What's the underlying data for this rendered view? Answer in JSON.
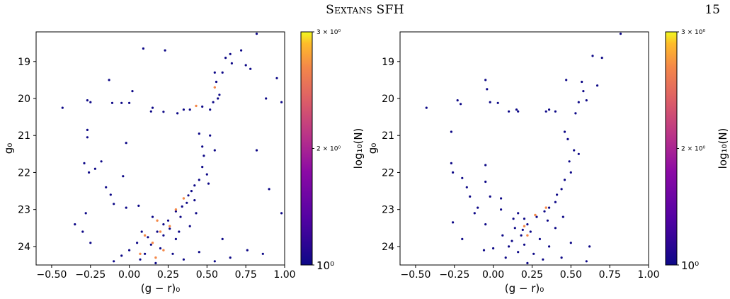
{
  "header": {
    "title": "Sextans SFH",
    "page_number": "15"
  },
  "chart_data": [
    {
      "type": "scatter",
      "title": "",
      "xlabel": "(g − r)₀",
      "ylabel": "g₀",
      "xlim": [
        -0.6,
        1.0
      ],
      "ylim": [
        24.5,
        18.2
      ],
      "y_inverted": true,
      "xticks": [
        "−0.50",
        "−0.25",
        "0.00",
        "0.25",
        "0.50",
        "0.75",
        "1.00"
      ],
      "yticks": [
        "19",
        "20",
        "21",
        "22",
        "23",
        "24"
      ],
      "colorbar": {
        "label": "log₁₀(N)",
        "ticks": [
          "3 × 10⁰",
          "2 × 10⁰",
          "10⁰"
        ],
        "range": [
          1,
          3
        ],
        "colormap": "plasma"
      },
      "points": [
        {
          "x": -0.27,
          "y": 20.05
        },
        {
          "x": -0.25,
          "y": 20.1
        },
        {
          "x": -0.11,
          "y": 20.12
        },
        {
          "x": -0.05,
          "y": 20.12
        },
        {
          "x": 0.0,
          "y": 20.12
        },
        {
          "x": 0.02,
          "y": 19.8
        },
        {
          "x": -0.13,
          "y": 19.5
        },
        {
          "x": 0.14,
          "y": 20.35
        },
        {
          "x": 0.15,
          "y": 20.25
        },
        {
          "x": 0.22,
          "y": 20.36
        },
        {
          "x": 0.31,
          "y": 20.4
        },
        {
          "x": 0.35,
          "y": 20.3
        },
        {
          "x": 0.39,
          "y": 20.3
        },
        {
          "x": 0.47,
          "y": 20.22
        },
        {
          "x": 0.52,
          "y": 20.3
        },
        {
          "x": 0.54,
          "y": 20.1
        },
        {
          "x": 0.57,
          "y": 20.0
        },
        {
          "x": 0.58,
          "y": 19.9
        },
        {
          "x": 0.56,
          "y": 19.55
        },
        {
          "x": 0.55,
          "y": 19.3
        },
        {
          "x": 0.6,
          "y": 19.3
        },
        {
          "x": 0.62,
          "y": 18.9
        },
        {
          "x": 0.65,
          "y": 18.8
        },
        {
          "x": 0.72,
          "y": 18.7
        },
        {
          "x": 0.66,
          "y": 19.05
        },
        {
          "x": 0.09,
          "y": 18.65
        },
        {
          "x": 0.23,
          "y": 18.7
        },
        {
          "x": 0.82,
          "y": 18.25
        },
        {
          "x": 0.95,
          "y": 19.45
        },
        {
          "x": 0.98,
          "y": 20.1
        },
        {
          "x": 0.75,
          "y": 19.1
        },
        {
          "x": 0.78,
          "y": 19.2
        },
        {
          "x": 0.88,
          "y": 20.0
        },
        {
          "x": -0.43,
          "y": 20.25
        },
        {
          "x": -0.27,
          "y": 20.85
        },
        {
          "x": -0.27,
          "y": 21.05
        },
        {
          "x": -0.29,
          "y": 21.75
        },
        {
          "x": -0.26,
          "y": 22.0
        },
        {
          "x": -0.22,
          "y": 21.9
        },
        {
          "x": -0.18,
          "y": 21.7
        },
        {
          "x": -0.15,
          "y": 22.4
        },
        {
          "x": -0.12,
          "y": 22.6
        },
        {
          "x": -0.1,
          "y": 22.85
        },
        {
          "x": -0.02,
          "y": 21.2
        },
        {
          "x": -0.04,
          "y": 22.1
        },
        {
          "x": -0.02,
          "y": 22.95
        },
        {
          "x": 0.06,
          "y": 22.9
        },
        {
          "x": -0.35,
          "y": 23.4
        },
        {
          "x": -0.28,
          "y": 23.1
        },
        {
          "x": -0.3,
          "y": 23.6
        },
        {
          "x": -0.25,
          "y": 23.9
        },
        {
          "x": 0.82,
          "y": 21.4
        },
        {
          "x": 0.9,
          "y": 22.45
        },
        {
          "x": 0.98,
          "y": 23.1
        },
        {
          "x": 0.86,
          "y": 24.2
        },
        {
          "x": 0.76,
          "y": 24.1
        },
        {
          "x": 0.45,
          "y": 20.95
        },
        {
          "x": 0.47,
          "y": 21.3
        },
        {
          "x": 0.48,
          "y": 21.55
        },
        {
          "x": 0.47,
          "y": 21.85
        },
        {
          "x": 0.5,
          "y": 22.05
        },
        {
          "x": 0.45,
          "y": 22.2
        },
        {
          "x": 0.42,
          "y": 22.35
        },
        {
          "x": 0.4,
          "y": 22.5
        },
        {
          "x": 0.38,
          "y": 22.62
        },
        {
          "x": 0.37,
          "y": 22.82
        },
        {
          "x": 0.34,
          "y": 22.92
        },
        {
          "x": 0.3,
          "y": 23.05
        },
        {
          "x": 0.52,
          "y": 21.0
        },
        {
          "x": 0.55,
          "y": 21.4
        },
        {
          "x": 0.51,
          "y": 22.3
        },
        {
          "x": 0.42,
          "y": 22.75
        },
        {
          "x": 0.43,
          "y": 23.1
        },
        {
          "x": 0.39,
          "y": 23.45
        },
        {
          "x": 0.33,
          "y": 23.2
        },
        {
          "x": 0.25,
          "y": 23.3
        },
        {
          "x": 0.26,
          "y": 23.52
        },
        {
          "x": 0.22,
          "y": 23.4
        },
        {
          "x": 0.18,
          "y": 23.6
        },
        {
          "x": 0.15,
          "y": 23.2
        },
        {
          "x": 0.12,
          "y": 23.75
        },
        {
          "x": 0.08,
          "y": 23.6
        },
        {
          "x": 0.05,
          "y": 23.9
        },
        {
          "x": 0.0,
          "y": 24.1
        },
        {
          "x": -0.05,
          "y": 24.25
        },
        {
          "x": -0.1,
          "y": 24.4
        },
        {
          "x": 0.1,
          "y": 24.2
        },
        {
          "x": 0.2,
          "y": 24.05
        },
        {
          "x": 0.28,
          "y": 24.2
        },
        {
          "x": 0.35,
          "y": 24.35
        },
        {
          "x": 0.45,
          "y": 24.15
        },
        {
          "x": 0.55,
          "y": 24.4
        },
        {
          "x": 0.6,
          "y": 23.8
        },
        {
          "x": 0.65,
          "y": 24.3
        },
        {
          "x": 0.3,
          "y": 23.8
        },
        {
          "x": 0.17,
          "y": 24.45
        },
        {
          "x": 0.22,
          "y": 23.7
        },
        {
          "x": 0.14,
          "y": 23.95
        },
        {
          "x": 0.32,
          "y": 23.6
        },
        {
          "x": 0.07,
          "y": 24.35
        }
      ],
      "highlight_points": [
        {
          "x": 0.1,
          "y": 23.7
        },
        {
          "x": 0.15,
          "y": 23.9
        },
        {
          "x": 0.2,
          "y": 23.6
        },
        {
          "x": 0.22,
          "y": 24.1
        },
        {
          "x": 0.18,
          "y": 23.3
        },
        {
          "x": 0.26,
          "y": 23.45
        },
        {
          "x": 0.3,
          "y": 23.0
        },
        {
          "x": 0.35,
          "y": 22.7
        },
        {
          "x": 0.43,
          "y": 20.2
        },
        {
          "x": 0.55,
          "y": 19.7
        },
        {
          "x": 0.07,
          "y": 24.2
        },
        {
          "x": 0.17,
          "y": 24.3
        }
      ]
    },
    {
      "type": "scatter",
      "title": "",
      "xlabel": "(g − r)₀",
      "ylabel": "g₀",
      "xlim": [
        -0.6,
        1.0
      ],
      "ylim": [
        24.5,
        18.2
      ],
      "y_inverted": true,
      "xticks": [
        "−0.50",
        "−0.25",
        "0.00",
        "0.25",
        "0.50",
        "0.75",
        "1.00"
      ],
      "yticks": [
        "19",
        "20",
        "21",
        "22",
        "23",
        "24"
      ],
      "colorbar": {
        "label": "log₁₀(N)",
        "ticks": [
          "3 × 10⁰",
          "2 × 10⁰",
          "10⁰"
        ],
        "range": [
          1,
          3
        ],
        "colormap": "plasma"
      },
      "points": [
        {
          "x": -0.43,
          "y": 20.25
        },
        {
          "x": -0.23,
          "y": 20.05
        },
        {
          "x": -0.21,
          "y": 20.15
        },
        {
          "x": -0.05,
          "y": 19.5
        },
        {
          "x": -0.04,
          "y": 19.75
        },
        {
          "x": -0.02,
          "y": 20.1
        },
        {
          "x": 0.03,
          "y": 20.12
        },
        {
          "x": 0.1,
          "y": 20.35
        },
        {
          "x": 0.15,
          "y": 20.3
        },
        {
          "x": 0.16,
          "y": 20.35
        },
        {
          "x": 0.34,
          "y": 20.35
        },
        {
          "x": 0.36,
          "y": 20.3
        },
        {
          "x": 0.4,
          "y": 20.35
        },
        {
          "x": 0.47,
          "y": 19.5
        },
        {
          "x": 0.53,
          "y": 20.4
        },
        {
          "x": 0.55,
          "y": 20.1
        },
        {
          "x": 0.57,
          "y": 19.55
        },
        {
          "x": 0.58,
          "y": 19.8
        },
        {
          "x": 0.6,
          "y": 20.05
        },
        {
          "x": 0.64,
          "y": 18.85
        },
        {
          "x": 0.7,
          "y": 18.9
        },
        {
          "x": 0.67,
          "y": 19.65
        },
        {
          "x": 0.82,
          "y": 18.25
        },
        {
          "x": -0.27,
          "y": 20.9
        },
        {
          "x": -0.27,
          "y": 21.75
        },
        {
          "x": -0.26,
          "y": 22.0
        },
        {
          "x": -0.2,
          "y": 22.15
        },
        {
          "x": -0.17,
          "y": 22.4
        },
        {
          "x": -0.15,
          "y": 22.65
        },
        {
          "x": -0.1,
          "y": 22.95
        },
        {
          "x": -0.05,
          "y": 22.25
        },
        {
          "x": -0.05,
          "y": 21.8
        },
        {
          "x": -0.02,
          "y": 22.65
        },
        {
          "x": 0.05,
          "y": 22.7
        },
        {
          "x": 0.05,
          "y": 23.0
        },
        {
          "x": -0.26,
          "y": 23.35
        },
        {
          "x": -0.12,
          "y": 23.1
        },
        {
          "x": -0.05,
          "y": 23.4
        },
        {
          "x": -0.2,
          "y": 23.8
        },
        {
          "x": 0.46,
          "y": 20.9
        },
        {
          "x": 0.48,
          "y": 21.1
        },
        {
          "x": 0.52,
          "y": 21.4
        },
        {
          "x": 0.49,
          "y": 21.7
        },
        {
          "x": 0.5,
          "y": 22.0
        },
        {
          "x": 0.46,
          "y": 22.2
        },
        {
          "x": 0.44,
          "y": 22.45
        },
        {
          "x": 0.41,
          "y": 22.6
        },
        {
          "x": 0.4,
          "y": 22.8
        },
        {
          "x": 0.36,
          "y": 22.95
        },
        {
          "x": 0.33,
          "y": 23.05
        },
        {
          "x": 0.55,
          "y": 21.5
        },
        {
          "x": 0.45,
          "y": 23.2
        },
        {
          "x": 0.62,
          "y": 24.0
        },
        {
          "x": 0.6,
          "y": 24.4
        },
        {
          "x": 0.16,
          "y": 23.1
        },
        {
          "x": 0.2,
          "y": 23.25
        },
        {
          "x": 0.22,
          "y": 23.4
        },
        {
          "x": 0.24,
          "y": 23.6
        },
        {
          "x": 0.18,
          "y": 23.7
        },
        {
          "x": 0.14,
          "y": 23.5
        },
        {
          "x": 0.12,
          "y": 23.85
        },
        {
          "x": 0.1,
          "y": 24.0
        },
        {
          "x": 0.16,
          "y": 24.15
        },
        {
          "x": 0.2,
          "y": 23.95
        },
        {
          "x": 0.26,
          "y": 24.2
        },
        {
          "x": 0.3,
          "y": 23.8
        },
        {
          "x": 0.32,
          "y": 24.35
        },
        {
          "x": 0.36,
          "y": 24.0
        },
        {
          "x": 0.08,
          "y": 24.3
        },
        {
          "x": 0.22,
          "y": 24.45
        },
        {
          "x": 0.4,
          "y": 23.5
        },
        {
          "x": 0.28,
          "y": 23.2
        },
        {
          "x": 0.06,
          "y": 23.7
        },
        {
          "x": 0.0,
          "y": 24.05
        },
        {
          "x": -0.06,
          "y": 24.1
        },
        {
          "x": 0.44,
          "y": 24.3
        },
        {
          "x": 0.5,
          "y": 23.9
        },
        {
          "x": 0.35,
          "y": 23.3
        },
        {
          "x": 0.19,
          "y": 23.55
        },
        {
          "x": 0.13,
          "y": 23.25
        }
      ],
      "highlight_points": [
        {
          "x": 0.2,
          "y": 23.45
        },
        {
          "x": 0.27,
          "y": 23.15
        },
        {
          "x": 0.22,
          "y": 23.7
        },
        {
          "x": 0.34,
          "y": 22.95
        }
      ]
    }
  ]
}
